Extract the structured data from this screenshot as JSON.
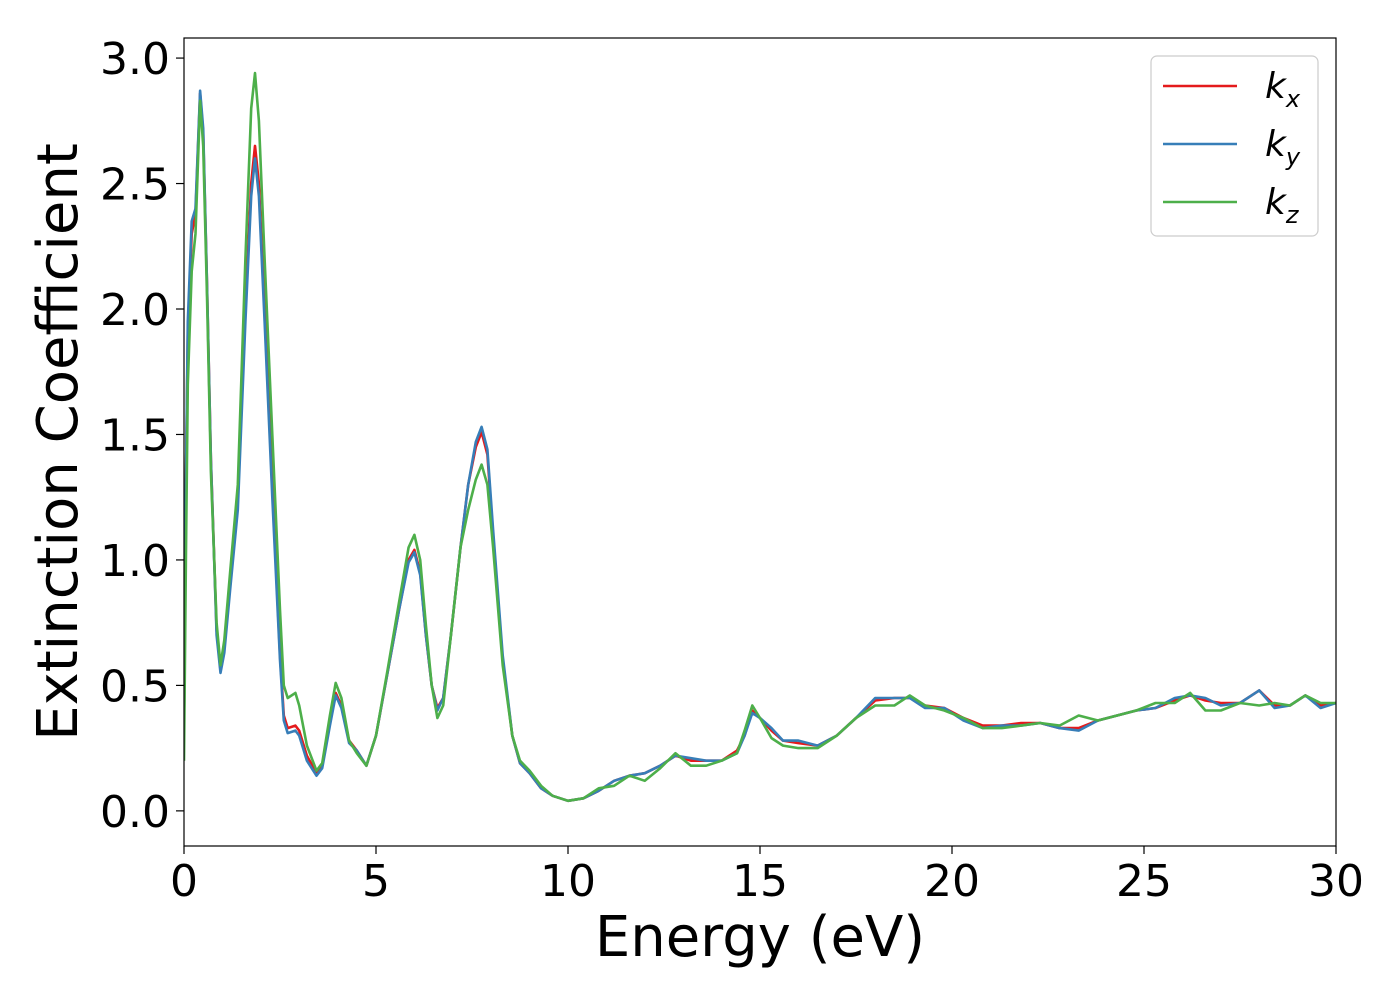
{
  "chart_data": {
    "type": "line",
    "title": "",
    "xlabel": "Energy (eV)",
    "ylabel": "Extinction Coefficient",
    "xlim": [
      0,
      30
    ],
    "ylim": [
      -0.14,
      3.08
    ],
    "xticks": [
      0,
      5,
      10,
      15,
      20,
      25,
      30
    ],
    "xtick_labels": [
      "0",
      "5",
      "10",
      "15",
      "20",
      "25",
      "30"
    ],
    "yticks": [
      0.0,
      0.5,
      1.0,
      1.5,
      2.0,
      2.5,
      3.0
    ],
    "ytick_labels": [
      "0.0",
      "0.5",
      "1.0",
      "1.5",
      "2.0",
      "2.5",
      "3.0"
    ],
    "grid": false,
    "legend_position": "top-right",
    "series": [
      {
        "name": "k",
        "subscript": "x",
        "color": "#e41a1c",
        "points": [
          [
            0,
            0.3
          ],
          [
            0.05,
            1.3
          ],
          [
            0.1,
            1.9
          ],
          [
            0.2,
            2.3
          ],
          [
            0.3,
            2.38
          ],
          [
            0.42,
            2.86
          ],
          [
            0.5,
            2.7
          ],
          [
            0.6,
            2.1
          ],
          [
            0.7,
            1.4
          ],
          [
            0.85,
            0.72
          ],
          [
            0.95,
            0.56
          ],
          [
            1.05,
            0.65
          ],
          [
            1.2,
            0.9
          ],
          [
            1.4,
            1.25
          ],
          [
            1.6,
            2.0
          ],
          [
            1.75,
            2.5
          ],
          [
            1.85,
            2.65
          ],
          [
            1.95,
            2.5
          ],
          [
            2.1,
            2.0
          ],
          [
            2.3,
            1.3
          ],
          [
            2.5,
            0.62
          ],
          [
            2.6,
            0.38
          ],
          [
            2.7,
            0.33
          ],
          [
            2.9,
            0.34
          ],
          [
            3.0,
            0.32
          ],
          [
            3.2,
            0.22
          ],
          [
            3.45,
            0.15
          ],
          [
            3.6,
            0.18
          ],
          [
            3.8,
            0.35
          ],
          [
            3.95,
            0.47
          ],
          [
            4.1,
            0.42
          ],
          [
            4.3,
            0.28
          ],
          [
            4.5,
            0.24
          ],
          [
            4.75,
            0.18
          ],
          [
            5.0,
            0.3
          ],
          [
            5.3,
            0.55
          ],
          [
            5.6,
            0.8
          ],
          [
            5.85,
            1.0
          ],
          [
            6.0,
            1.04
          ],
          [
            6.15,
            0.95
          ],
          [
            6.3,
            0.7
          ],
          [
            6.45,
            0.5
          ],
          [
            6.6,
            0.41
          ],
          [
            6.75,
            0.45
          ],
          [
            6.95,
            0.7
          ],
          [
            7.2,
            1.05
          ],
          [
            7.4,
            1.3
          ],
          [
            7.6,
            1.45
          ],
          [
            7.75,
            1.51
          ],
          [
            7.9,
            1.42
          ],
          [
            8.05,
            1.1
          ],
          [
            8.3,
            0.6
          ],
          [
            8.55,
            0.3
          ],
          [
            8.75,
            0.19
          ],
          [
            9.0,
            0.15
          ],
          [
            9.3,
            0.09
          ],
          [
            9.6,
            0.06
          ],
          [
            10.0,
            0.04
          ],
          [
            10.4,
            0.05
          ],
          [
            10.8,
            0.08
          ],
          [
            11.2,
            0.12
          ],
          [
            11.6,
            0.14
          ],
          [
            12.0,
            0.15
          ],
          [
            12.4,
            0.18
          ],
          [
            12.8,
            0.22
          ],
          [
            13.2,
            0.2
          ],
          [
            13.6,
            0.2
          ],
          [
            14.0,
            0.2
          ],
          [
            14.4,
            0.24
          ],
          [
            14.6,
            0.3
          ],
          [
            14.8,
            0.4
          ],
          [
            15.0,
            0.37
          ],
          [
            15.3,
            0.32
          ],
          [
            15.6,
            0.28
          ],
          [
            16.0,
            0.27
          ],
          [
            16.5,
            0.26
          ],
          [
            17.0,
            0.3
          ],
          [
            17.5,
            0.37
          ],
          [
            18.0,
            0.44
          ],
          [
            18.5,
            0.45
          ],
          [
            18.9,
            0.45
          ],
          [
            19.3,
            0.42
          ],
          [
            19.8,
            0.41
          ],
          [
            20.3,
            0.37
          ],
          [
            20.8,
            0.34
          ],
          [
            21.3,
            0.34
          ],
          [
            21.8,
            0.35
          ],
          [
            22.3,
            0.35
          ],
          [
            22.8,
            0.33
          ],
          [
            23.3,
            0.33
          ],
          [
            23.8,
            0.36
          ],
          [
            24.3,
            0.38
          ],
          [
            24.8,
            0.4
          ],
          [
            25.3,
            0.41
          ],
          [
            25.8,
            0.44
          ],
          [
            26.2,
            0.46
          ],
          [
            26.6,
            0.44
          ],
          [
            27.0,
            0.43
          ],
          [
            27.5,
            0.43
          ],
          [
            28.0,
            0.48
          ],
          [
            28.4,
            0.42
          ],
          [
            28.8,
            0.42
          ],
          [
            29.2,
            0.46
          ],
          [
            29.6,
            0.42
          ],
          [
            30.0,
            0.43
          ]
        ]
      },
      {
        "name": "k",
        "subscript": "y",
        "color": "#377eb8",
        "points": [
          [
            0,
            0.3
          ],
          [
            0.05,
            1.3
          ],
          [
            0.1,
            1.95
          ],
          [
            0.2,
            2.35
          ],
          [
            0.3,
            2.4
          ],
          [
            0.42,
            2.87
          ],
          [
            0.5,
            2.72
          ],
          [
            0.6,
            2.1
          ],
          [
            0.7,
            1.4
          ],
          [
            0.85,
            0.7
          ],
          [
            0.95,
            0.55
          ],
          [
            1.05,
            0.63
          ],
          [
            1.2,
            0.88
          ],
          [
            1.4,
            1.2
          ],
          [
            1.6,
            1.95
          ],
          [
            1.75,
            2.45
          ],
          [
            1.85,
            2.6
          ],
          [
            1.95,
            2.45
          ],
          [
            2.1,
            1.95
          ],
          [
            2.3,
            1.25
          ],
          [
            2.5,
            0.6
          ],
          [
            2.6,
            0.36
          ],
          [
            2.7,
            0.31
          ],
          [
            2.9,
            0.32
          ],
          [
            3.0,
            0.3
          ],
          [
            3.2,
            0.2
          ],
          [
            3.45,
            0.14
          ],
          [
            3.6,
            0.17
          ],
          [
            3.8,
            0.34
          ],
          [
            3.95,
            0.46
          ],
          [
            4.1,
            0.41
          ],
          [
            4.3,
            0.27
          ],
          [
            4.5,
            0.24
          ],
          [
            4.75,
            0.18
          ],
          [
            5.0,
            0.3
          ],
          [
            5.3,
            0.55
          ],
          [
            5.6,
            0.8
          ],
          [
            5.85,
            0.99
          ],
          [
            6.0,
            1.03
          ],
          [
            6.15,
            0.94
          ],
          [
            6.3,
            0.7
          ],
          [
            6.45,
            0.5
          ],
          [
            6.6,
            0.4
          ],
          [
            6.75,
            0.45
          ],
          [
            6.95,
            0.7
          ],
          [
            7.2,
            1.05
          ],
          [
            7.4,
            1.3
          ],
          [
            7.6,
            1.47
          ],
          [
            7.75,
            1.53
          ],
          [
            7.9,
            1.44
          ],
          [
            8.05,
            1.12
          ],
          [
            8.3,
            0.62
          ],
          [
            8.55,
            0.3
          ],
          [
            8.75,
            0.19
          ],
          [
            9.0,
            0.15
          ],
          [
            9.3,
            0.09
          ],
          [
            9.6,
            0.06
          ],
          [
            10.0,
            0.04
          ],
          [
            10.4,
            0.05
          ],
          [
            10.8,
            0.08
          ],
          [
            11.2,
            0.12
          ],
          [
            11.6,
            0.14
          ],
          [
            12.0,
            0.15
          ],
          [
            12.4,
            0.18
          ],
          [
            12.8,
            0.22
          ],
          [
            13.2,
            0.21
          ],
          [
            13.6,
            0.2
          ],
          [
            14.0,
            0.2
          ],
          [
            14.4,
            0.23
          ],
          [
            14.6,
            0.3
          ],
          [
            14.8,
            0.39
          ],
          [
            15.0,
            0.37
          ],
          [
            15.3,
            0.33
          ],
          [
            15.6,
            0.28
          ],
          [
            16.0,
            0.28
          ],
          [
            16.5,
            0.26
          ],
          [
            17.0,
            0.3
          ],
          [
            17.5,
            0.37
          ],
          [
            18.0,
            0.45
          ],
          [
            18.5,
            0.45
          ],
          [
            18.9,
            0.45
          ],
          [
            19.3,
            0.41
          ],
          [
            19.8,
            0.41
          ],
          [
            20.3,
            0.36
          ],
          [
            20.8,
            0.33
          ],
          [
            21.3,
            0.34
          ],
          [
            21.8,
            0.34
          ],
          [
            22.3,
            0.35
          ],
          [
            22.8,
            0.33
          ],
          [
            23.3,
            0.32
          ],
          [
            23.8,
            0.36
          ],
          [
            24.3,
            0.38
          ],
          [
            24.8,
            0.4
          ],
          [
            25.3,
            0.41
          ],
          [
            25.8,
            0.45
          ],
          [
            26.2,
            0.46
          ],
          [
            26.6,
            0.45
          ],
          [
            27.0,
            0.42
          ],
          [
            27.5,
            0.43
          ],
          [
            28.0,
            0.48
          ],
          [
            28.4,
            0.41
          ],
          [
            28.8,
            0.42
          ],
          [
            29.2,
            0.46
          ],
          [
            29.6,
            0.41
          ],
          [
            30.0,
            0.43
          ]
        ]
      },
      {
        "name": "k",
        "subscript": "z",
        "color": "#4daf4a",
        "points": [
          [
            0,
            0.2
          ],
          [
            0.05,
            1.0
          ],
          [
            0.1,
            1.7
          ],
          [
            0.2,
            2.15
          ],
          [
            0.3,
            2.3
          ],
          [
            0.42,
            2.83
          ],
          [
            0.5,
            2.65
          ],
          [
            0.6,
            2.05
          ],
          [
            0.7,
            1.35
          ],
          [
            0.85,
            0.75
          ],
          [
            0.95,
            0.58
          ],
          [
            1.05,
            0.68
          ],
          [
            1.2,
            0.95
          ],
          [
            1.4,
            1.3
          ],
          [
            1.6,
            2.2
          ],
          [
            1.75,
            2.8
          ],
          [
            1.85,
            2.94
          ],
          [
            1.95,
            2.75
          ],
          [
            2.1,
            2.2
          ],
          [
            2.3,
            1.5
          ],
          [
            2.5,
            0.8
          ],
          [
            2.6,
            0.5
          ],
          [
            2.7,
            0.45
          ],
          [
            2.9,
            0.47
          ],
          [
            3.0,
            0.42
          ],
          [
            3.2,
            0.26
          ],
          [
            3.45,
            0.16
          ],
          [
            3.6,
            0.19
          ],
          [
            3.8,
            0.38
          ],
          [
            3.95,
            0.51
          ],
          [
            4.1,
            0.45
          ],
          [
            4.3,
            0.28
          ],
          [
            4.5,
            0.23
          ],
          [
            4.75,
            0.18
          ],
          [
            5.0,
            0.3
          ],
          [
            5.3,
            0.56
          ],
          [
            5.6,
            0.83
          ],
          [
            5.85,
            1.05
          ],
          [
            6.0,
            1.1
          ],
          [
            6.15,
            1.0
          ],
          [
            6.3,
            0.74
          ],
          [
            6.45,
            0.5
          ],
          [
            6.6,
            0.37
          ],
          [
            6.75,
            0.42
          ],
          [
            6.95,
            0.7
          ],
          [
            7.2,
            1.05
          ],
          [
            7.4,
            1.2
          ],
          [
            7.6,
            1.32
          ],
          [
            7.75,
            1.38
          ],
          [
            7.9,
            1.3
          ],
          [
            8.05,
            1.05
          ],
          [
            8.3,
            0.58
          ],
          [
            8.55,
            0.3
          ],
          [
            8.75,
            0.2
          ],
          [
            9.0,
            0.16
          ],
          [
            9.3,
            0.1
          ],
          [
            9.6,
            0.06
          ],
          [
            10.0,
            0.04
          ],
          [
            10.4,
            0.05
          ],
          [
            10.8,
            0.09
          ],
          [
            11.2,
            0.1
          ],
          [
            11.6,
            0.14
          ],
          [
            12.0,
            0.12
          ],
          [
            12.4,
            0.17
          ],
          [
            12.8,
            0.23
          ],
          [
            13.2,
            0.18
          ],
          [
            13.6,
            0.18
          ],
          [
            14.0,
            0.2
          ],
          [
            14.4,
            0.23
          ],
          [
            14.6,
            0.32
          ],
          [
            14.8,
            0.42
          ],
          [
            15.0,
            0.37
          ],
          [
            15.3,
            0.29
          ],
          [
            15.6,
            0.26
          ],
          [
            16.0,
            0.25
          ],
          [
            16.5,
            0.25
          ],
          [
            17.0,
            0.3
          ],
          [
            17.5,
            0.37
          ],
          [
            18.0,
            0.42
          ],
          [
            18.5,
            0.42
          ],
          [
            18.9,
            0.46
          ],
          [
            19.3,
            0.42
          ],
          [
            19.8,
            0.4
          ],
          [
            20.3,
            0.37
          ],
          [
            20.8,
            0.33
          ],
          [
            21.3,
            0.33
          ],
          [
            21.8,
            0.34
          ],
          [
            22.3,
            0.35
          ],
          [
            22.8,
            0.34
          ],
          [
            23.3,
            0.38
          ],
          [
            23.8,
            0.36
          ],
          [
            24.3,
            0.38
          ],
          [
            24.8,
            0.4
          ],
          [
            25.3,
            0.43
          ],
          [
            25.8,
            0.43
          ],
          [
            26.2,
            0.47
          ],
          [
            26.6,
            0.4
          ],
          [
            27.0,
            0.4
          ],
          [
            27.5,
            0.43
          ],
          [
            28.0,
            0.42
          ],
          [
            28.4,
            0.43
          ],
          [
            28.8,
            0.42
          ],
          [
            29.2,
            0.46
          ],
          [
            29.6,
            0.43
          ],
          [
            30.0,
            0.43
          ]
        ]
      }
    ]
  }
}
